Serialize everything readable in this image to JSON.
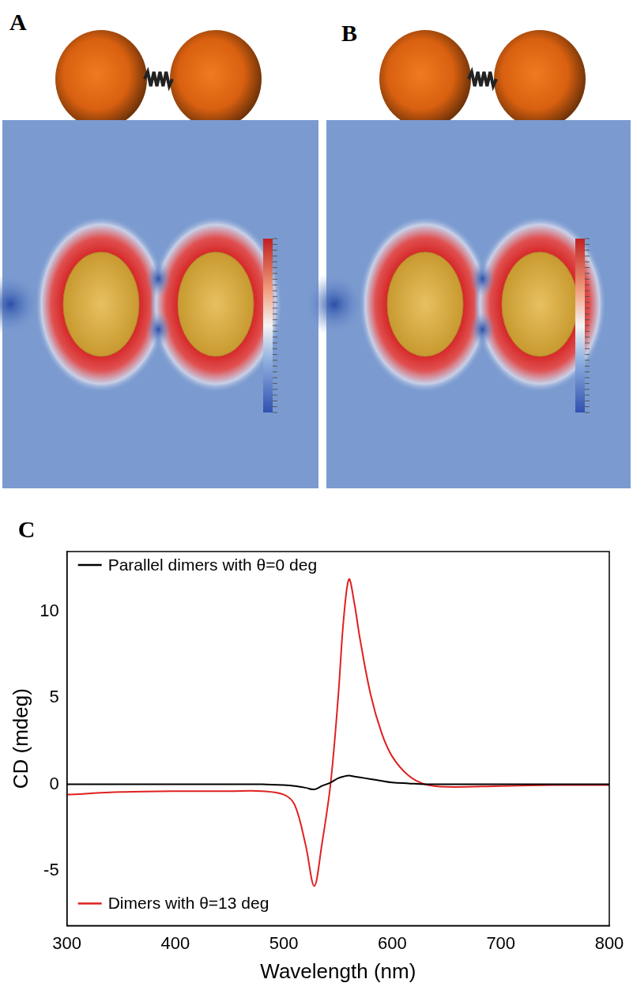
{
  "panel_labels": [
    "A",
    "B",
    "C"
  ],
  "chart_data": {
    "type": "line",
    "x": [
      300,
      350,
      400,
      450,
      480,
      500,
      510,
      520,
      528,
      535,
      543,
      550,
      555,
      560,
      565,
      570,
      580,
      590,
      600,
      615,
      630,
      650,
      700,
      750,
      800
    ],
    "series": [
      {
        "name": "Parallel dimers with θ=0 deg",
        "color": "#000000",
        "values": [
          0,
          0,
          0,
          0,
          0,
          -0.05,
          -0.1,
          -0.2,
          -0.3,
          -0.1,
          0.1,
          0.35,
          0.45,
          0.5,
          0.45,
          0.4,
          0.3,
          0.2,
          0.1,
          0.05,
          0,
          0,
          0,
          0,
          0
        ]
      },
      {
        "name": "Dimers with θ=13 deg",
        "color": "#e02020",
        "values": [
          -0.6,
          -0.45,
          -0.4,
          -0.4,
          -0.4,
          -0.6,
          -1.2,
          -3.5,
          -5.9,
          -3.5,
          0,
          5,
          9.5,
          11.9,
          10.5,
          8.5,
          5.2,
          3,
          1.6,
          0.5,
          0,
          -0.15,
          -0.1,
          -0.05,
          -0.05
        ]
      }
    ],
    "xlabel": "Wavelength (nm)",
    "ylabel": "CD (mdeg)",
    "xlim": [
      300,
      800
    ],
    "xticks": [
      300,
      400,
      500,
      600,
      700,
      800
    ],
    "ylim": [
      -8.2,
      13.5
    ],
    "yticks": [
      -5,
      0,
      5,
      10
    ],
    "grid": false
  }
}
